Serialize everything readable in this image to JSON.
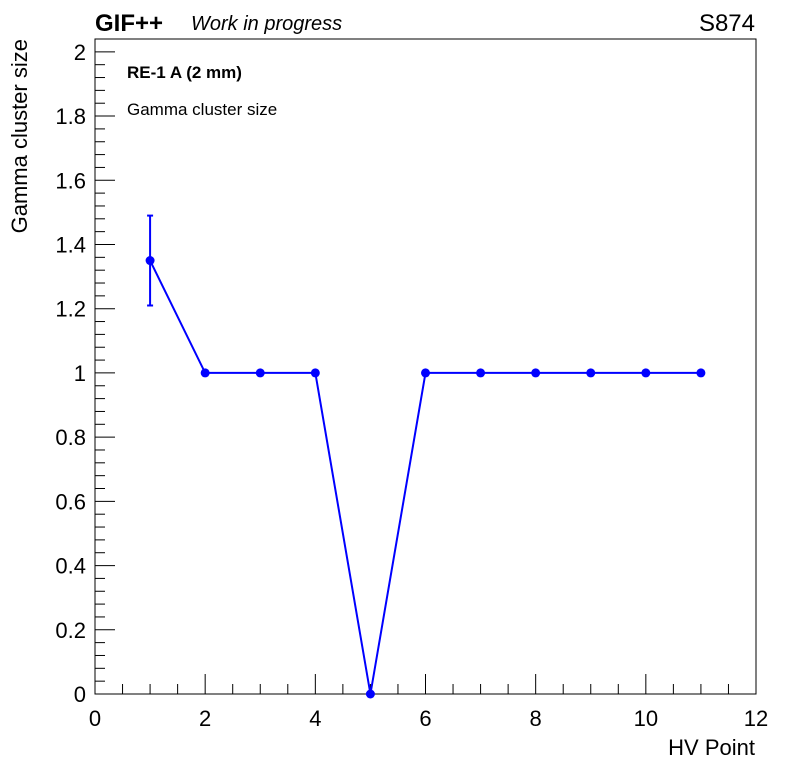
{
  "header": {
    "brand": "GIF++",
    "status": "Work in progress",
    "run_id": "S874"
  },
  "legend": {
    "detector": "RE-1 A (2 mm)",
    "quantity": "Gamma cluster size"
  },
  "chart_data": {
    "type": "scatter",
    "xlabel": "HV Point",
    "ylabel": "Gamma cluster size",
    "xlim": [
      0,
      12
    ],
    "ylim": [
      0,
      2.04
    ],
    "x_ticks": [
      0,
      2,
      4,
      6,
      8,
      10,
      12
    ],
    "y_ticks": [
      0,
      0.2,
      0.4,
      0.6,
      0.8,
      1,
      1.2,
      1.4,
      1.6,
      1.8,
      2
    ],
    "grid": false,
    "color": "#0000ff",
    "series": [
      {
        "x": [
          1,
          2,
          3,
          4,
          5,
          6,
          7,
          8,
          9,
          10,
          11
        ],
        "y": [
          1.35,
          1,
          1,
          1,
          0,
          1,
          1,
          1,
          1,
          1,
          1
        ],
        "y_err": [
          0.14,
          0,
          0,
          0,
          0,
          0,
          0,
          0,
          0,
          0,
          0
        ]
      }
    ]
  }
}
